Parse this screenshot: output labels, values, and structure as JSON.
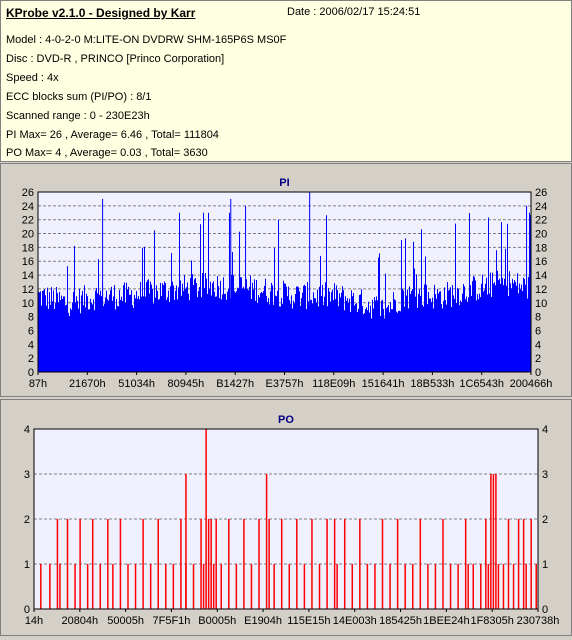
{
  "header": {
    "title": "KProbe v2.1.0 - Designed by Karr",
    "date": "Date : 2006/02/17 15:24:51",
    "lines": [
      "Model : 4-0-2-0 M:LITE-ON DVDRW SHM-165P6S MS0F",
      "Disc : DVD-R , PRINCO [Princo Corporation]",
      "Speed : 4x",
      "ECC blocks sum (PI/PO) : 8/1",
      "Scanned range : 0 - 230E23h",
      "PI Max= 26 , Average= 6.46 , Total= 111804",
      "PO Max= 4 , Average= 0.03 , Total= 3630"
    ]
  },
  "colors": {
    "pi": "#0000ff",
    "po": "#ff0000",
    "plot_bg": "#f0f0ff",
    "grid": "#7f7f7f"
  },
  "chart_data": [
    {
      "type": "bar",
      "title": "PI",
      "ylim": [
        0,
        26
      ],
      "yticks": [
        0,
        2,
        4,
        6,
        8,
        10,
        12,
        14,
        16,
        18,
        20,
        22,
        24,
        26
      ],
      "xtick_labels": [
        "87h",
        "21670h",
        "51034h",
        "80945h",
        "B1427h",
        "E3757h",
        "118E09h",
        "151641h",
        "18B533h",
        "1C6543h",
        "200466h"
      ],
      "profile": [
        {
          "x": 0,
          "base": 11
        },
        {
          "x": 0.06,
          "base": 10
        },
        {
          "x": 0.12,
          "base": 11
        },
        {
          "x": 0.18,
          "base": 11
        },
        {
          "x": 0.28,
          "base": 12
        },
        {
          "x": 0.36,
          "base": 12.5
        },
        {
          "x": 0.44,
          "base": 12
        },
        {
          "x": 0.52,
          "base": 11
        },
        {
          "x": 0.6,
          "base": 11
        },
        {
          "x": 0.66,
          "base": 10
        },
        {
          "x": 0.7,
          "base": 9
        },
        {
          "x": 0.74,
          "base": 11
        },
        {
          "x": 0.82,
          "base": 11
        },
        {
          "x": 0.88,
          "base": 12
        },
        {
          "x": 0.95,
          "base": 13
        },
        {
          "x": 1,
          "base": 12
        }
      ],
      "peaks": [
        {
          "x": 0.13,
          "value": 25
        },
        {
          "x": 0.39,
          "value": 25
        },
        {
          "x": 0.42,
          "value": 24
        },
        {
          "x": 0.55,
          "value": 26
        },
        {
          "x": 0.99,
          "value": 24
        }
      ]
    },
    {
      "type": "bar",
      "title": "PO",
      "ylim": [
        0,
        4
      ],
      "yticks": [
        0,
        1,
        2,
        3,
        4
      ],
      "xtick_labels": [
        "14h",
        "20804h",
        "50005h",
        "7F5F1h",
        "B0005h",
        "E1904h",
        "115E15h",
        "14E003h",
        "185425h",
        "1BEE24h",
        "1F8305h",
        "230738h"
      ],
      "bars": [
        {
          "x": 0.012,
          "value": 1
        },
        {
          "x": 0.03,
          "value": 1
        },
        {
          "x": 0.045,
          "value": 2
        },
        {
          "x": 0.05,
          "value": 1
        },
        {
          "x": 0.065,
          "value": 2
        },
        {
          "x": 0.08,
          "value": 1
        },
        {
          "x": 0.09,
          "value": 2
        },
        {
          "x": 0.105,
          "value": 1
        },
        {
          "x": 0.115,
          "value": 2
        },
        {
          "x": 0.13,
          "value": 1
        },
        {
          "x": 0.145,
          "value": 2
        },
        {
          "x": 0.155,
          "value": 1
        },
        {
          "x": 0.17,
          "value": 2
        },
        {
          "x": 0.185,
          "value": 1
        },
        {
          "x": 0.2,
          "value": 1
        },
        {
          "x": 0.215,
          "value": 2
        },
        {
          "x": 0.23,
          "value": 1
        },
        {
          "x": 0.245,
          "value": 2
        },
        {
          "x": 0.26,
          "value": 1
        },
        {
          "x": 0.275,
          "value": 1
        },
        {
          "x": 0.29,
          "value": 2
        },
        {
          "x": 0.3,
          "value": 1
        },
        {
          "x": 0.315,
          "value": 1
        },
        {
          "x": 0.3,
          "value": 3
        },
        {
          "x": 0.33,
          "value": 2
        },
        {
          "x": 0.335,
          "value": 1
        },
        {
          "x": 0.34,
          "value": 4
        },
        {
          "x": 0.345,
          "value": 2
        },
        {
          "x": 0.35,
          "value": 2
        },
        {
          "x": 0.355,
          "value": 1
        },
        {
          "x": 0.36,
          "value": 2
        },
        {
          "x": 0.37,
          "value": 1
        },
        {
          "x": 0.385,
          "value": 2
        },
        {
          "x": 0.4,
          "value": 1
        },
        {
          "x": 0.415,
          "value": 2
        },
        {
          "x": 0.43,
          "value": 1
        },
        {
          "x": 0.445,
          "value": 2
        },
        {
          "x": 0.46,
          "value": 3
        },
        {
          "x": 0.465,
          "value": 2
        },
        {
          "x": 0.475,
          "value": 1
        },
        {
          "x": 0.49,
          "value": 2
        },
        {
          "x": 0.505,
          "value": 1
        },
        {
          "x": 0.52,
          "value": 2
        },
        {
          "x": 0.535,
          "value": 1
        },
        {
          "x": 0.55,
          "value": 2
        },
        {
          "x": 0.565,
          "value": 1
        },
        {
          "x": 0.58,
          "value": 2
        },
        {
          "x": 0.595,
          "value": 2
        },
        {
          "x": 0.6,
          "value": 1
        },
        {
          "x": 0.615,
          "value": 2
        },
        {
          "x": 0.63,
          "value": 1
        },
        {
          "x": 0.645,
          "value": 2
        },
        {
          "x": 0.66,
          "value": 1
        },
        {
          "x": 0.675,
          "value": 1
        },
        {
          "x": 0.69,
          "value": 2
        },
        {
          "x": 0.705,
          "value": 1
        },
        {
          "x": 0.72,
          "value": 2
        },
        {
          "x": 0.735,
          "value": 1
        },
        {
          "x": 0.75,
          "value": 1
        },
        {
          "x": 0.765,
          "value": 2
        },
        {
          "x": 0.78,
          "value": 1
        },
        {
          "x": 0.795,
          "value": 1
        },
        {
          "x": 0.81,
          "value": 2
        },
        {
          "x": 0.825,
          "value": 1
        },
        {
          "x": 0.84,
          "value": 1
        },
        {
          "x": 0.855,
          "value": 2
        },
        {
          "x": 0.86,
          "value": 1
        },
        {
          "x": 0.87,
          "value": 1
        },
        {
          "x": 0.885,
          "value": 1
        },
        {
          "x": 0.895,
          "value": 2
        },
        {
          "x": 0.9,
          "value": 1
        },
        {
          "x": 0.905,
          "value": 3
        },
        {
          "x": 0.91,
          "value": 3
        },
        {
          "x": 0.915,
          "value": 3
        },
        {
          "x": 0.92,
          "value": 1
        },
        {
          "x": 0.93,
          "value": 1
        },
        {
          "x": 0.94,
          "value": 2
        },
        {
          "x": 0.95,
          "value": 1
        },
        {
          "x": 0.96,
          "value": 2
        },
        {
          "x": 0.97,
          "value": 2
        },
        {
          "x": 0.975,
          "value": 1
        },
        {
          "x": 0.985,
          "value": 2
        },
        {
          "x": 0.995,
          "value": 1
        }
      ]
    }
  ]
}
